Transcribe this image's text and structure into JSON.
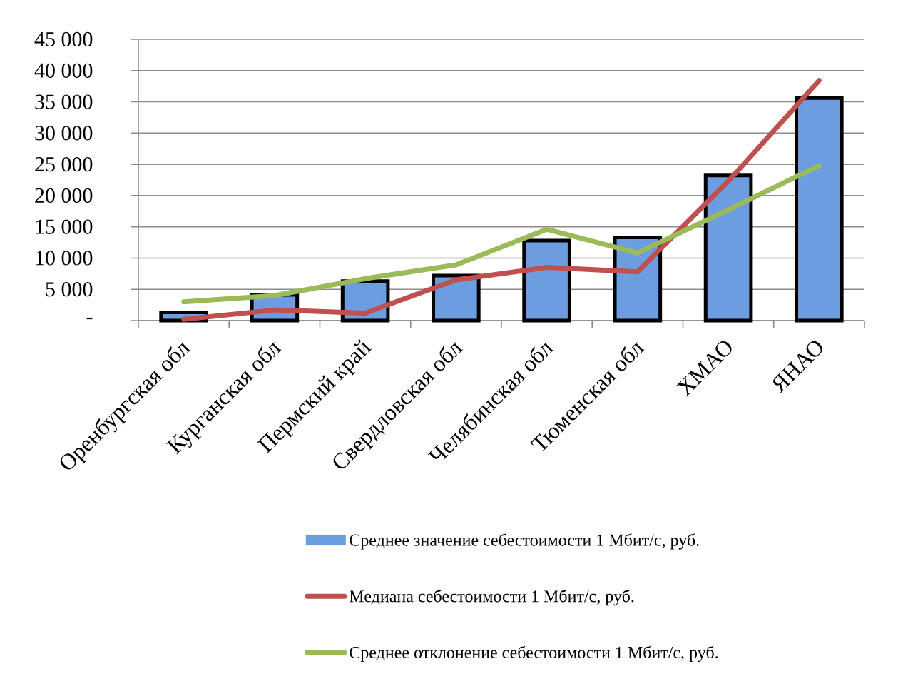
{
  "chart_data": {
    "type": "bar",
    "categories": [
      "Оренбургская обл",
      "Курганская обл",
      "Пермский край",
      "Свердловская обл",
      "Челябинская обл",
      "Тюменская обл",
      "ХМАО",
      "ЯНАО"
    ],
    "series": [
      {
        "name": "Среднее значение себестоимости 1 Мбит/с, руб.",
        "color": "#6c9de0",
        "values": [
          1300,
          4100,
          6300,
          7200,
          12800,
          13300,
          23200,
          35600
        ]
      },
      {
        "name": "Медиана себестоимости 1 Мбит/с, руб.",
        "type": "line",
        "color": "#c0504d",
        "values": [
          200,
          1700,
          1200,
          6500,
          8500,
          7800,
          22300,
          38400
        ]
      },
      {
        "name": "Среднее отклонение себестоимости 1 Мбит/с, руб.",
        "type": "line",
        "color": "#9bbb59",
        "values": [
          3000,
          4000,
          6700,
          8900,
          14600,
          10800,
          17700,
          24800
        ]
      }
    ],
    "ylim": [
      0,
      45000
    ],
    "yticks": [
      {
        "value": 0,
        "label": "-"
      },
      {
        "value": 5000,
        "label": "5 000"
      },
      {
        "value": 10000,
        "label": "10 000"
      },
      {
        "value": 15000,
        "label": "15 000"
      },
      {
        "value": 20000,
        "label": "20 000"
      },
      {
        "value": 25000,
        "label": "25 000"
      },
      {
        "value": 30000,
        "label": "30 000"
      },
      {
        "value": 35000,
        "label": "35 000"
      },
      {
        "value": 40000,
        "label": "40 000"
      },
      {
        "value": 45000,
        "label": "45 000"
      }
    ],
    "grid": "y",
    "legend": "bottom",
    "line_style": "solid"
  }
}
